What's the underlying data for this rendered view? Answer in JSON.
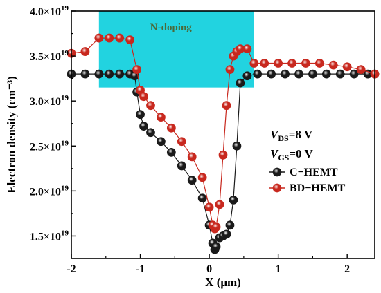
{
  "chart_data": {
    "type": "scatter",
    "xlabel": "X (μm)",
    "ylabel": "Electron density (cm⁻³)",
    "xlim": [
      -2,
      2.4
    ],
    "ylim": [
      1.25e+19,
      4e+19
    ],
    "x_ticks": [
      -2,
      -1,
      0,
      1,
      2
    ],
    "x_tick_labels": [
      "-2",
      "-1",
      "0",
      "1",
      "2"
    ],
    "y_ticks": [
      1.5e+19,
      2e+19,
      2.5e+19,
      3e+19,
      3.5e+19,
      4e+19
    ],
    "y_tick_mantissas": [
      "1.5",
      "2.0",
      "2.5",
      "3.0",
      "3.5",
      "4.0"
    ],
    "y_tick_exp_base": "×10",
    "y_tick_exp": "19",
    "band": {
      "label": "N-doping",
      "x_range": [
        -1.6,
        0.65
      ],
      "y_range": [
        3.15e+19,
        4e+19
      ],
      "color": "#22d3e0"
    },
    "annotations": {
      "vds_main": "V",
      "vds_sub": "DS",
      "vds_value": "=8 V",
      "vgs_main": "V",
      "vgs_sub": "GS",
      "vgs_value": "=0 V"
    },
    "legend_position": "right",
    "series": [
      {
        "name": "C−HEMT",
        "color": "#1a1a1a",
        "x": [
          -2.0,
          -1.8,
          -1.6,
          -1.45,
          -1.3,
          -1.15,
          -1.08,
          -1.05,
          -1.0,
          -0.95,
          -0.85,
          -0.7,
          -0.55,
          -0.4,
          -0.25,
          -0.1,
          0.0,
          0.05,
          0.08,
          0.1,
          0.15,
          0.2,
          0.25,
          0.3,
          0.35,
          0.4,
          0.45,
          0.55,
          0.7,
          0.9,
          1.1,
          1.3,
          1.5,
          1.7,
          1.9,
          2.1,
          2.3,
          2.4
        ],
        "values": [
          3.3e+19,
          3.3e+19,
          3.3e+19,
          3.3e+19,
          3.3e+19,
          3.3e+19,
          3.28e+19,
          3.1e+19,
          2.85e+19,
          2.72e+19,
          2.65e+19,
          2.55e+19,
          2.43e+19,
          2.28e+19,
          2.12e+19,
          1.92e+19,
          1.62e+19,
          1.42e+19,
          1.35e+19,
          1.38e+19,
          1.48e+19,
          1.5e+19,
          1.52e+19,
          1.62e+19,
          1.9e+19,
          2.5e+19,
          3.2e+19,
          3.28e+19,
          3.3e+19,
          3.3e+19,
          3.3e+19,
          3.3e+19,
          3.3e+19,
          3.3e+19,
          3.3e+19,
          3.3e+19,
          3.3e+19,
          3.3e+19
        ]
      },
      {
        "name": "BD−HEMT",
        "color": "#c8281e",
        "x": [
          -2.0,
          -1.8,
          -1.6,
          -1.45,
          -1.3,
          -1.15,
          -1.05,
          -1.0,
          -0.95,
          -0.85,
          -0.7,
          -0.55,
          -0.4,
          -0.25,
          -0.1,
          0.0,
          0.05,
          0.08,
          0.1,
          0.15,
          0.2,
          0.25,
          0.3,
          0.35,
          0.4,
          0.45,
          0.55,
          0.65,
          0.8,
          1.0,
          1.2,
          1.4,
          1.6,
          1.8,
          2.0,
          2.2,
          2.4
        ],
        "values": [
          3.53e+19,
          3.55e+19,
          3.7e+19,
          3.7e+19,
          3.7e+19,
          3.68e+19,
          3.35e+19,
          3.12e+19,
          3.05e+19,
          2.95e+19,
          2.82e+19,
          2.7e+19,
          2.55e+19,
          2.38e+19,
          2.15e+19,
          1.82e+19,
          1.62e+19,
          1.58e+19,
          1.6e+19,
          1.85e+19,
          2.4e+19,
          2.95e+19,
          3.35e+19,
          3.5e+19,
          3.55e+19,
          3.58e+19,
          3.58e+19,
          3.42e+19,
          3.42e+19,
          3.42e+19,
          3.42e+19,
          3.42e+19,
          3.42e+19,
          3.4e+19,
          3.38e+19,
          3.35e+19,
          3.3e+19
        ]
      }
    ]
  }
}
